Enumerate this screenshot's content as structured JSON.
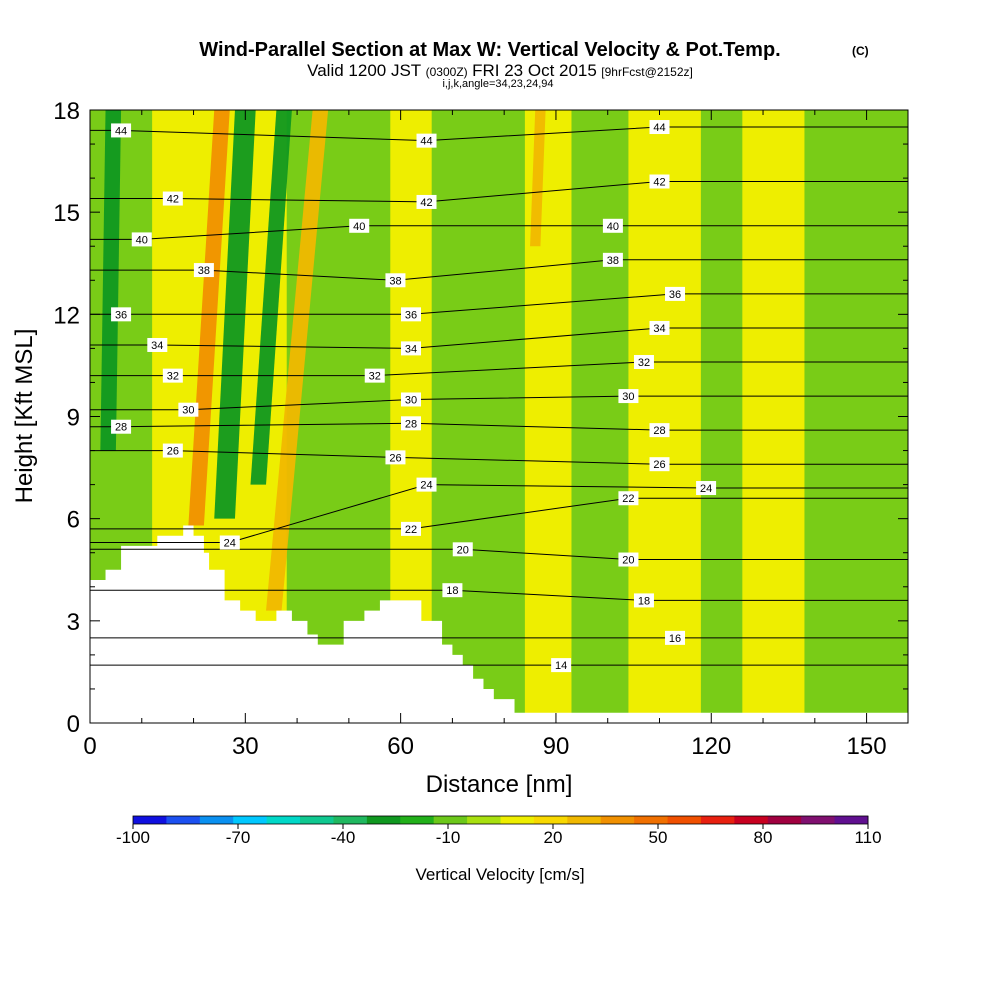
{
  "chart_data": {
    "type": "heatmap",
    "title": "Wind-Parallel Section at Max W: Vertical Velocity & Pot.Temp.",
    "title_mark": "(C)",
    "subtitle_main": "Valid 1200 JST",
    "subtitle_utc": "(0300Z)",
    "subtitle_date": "FRI 23 Oct 2015",
    "subtitle_fcst": "[9hrFcst@2152z]",
    "subtitle_indices": "i,j,k,angle=34,23,24,94",
    "xlabel": "Distance [nm]",
    "ylabel": "Height [Kft MSL]",
    "xlim": [
      0,
      158
    ],
    "ylim": [
      0,
      18
    ],
    "x_ticks": [
      0,
      30,
      60,
      90,
      120,
      150
    ],
    "x_tick_labels": [
      "0",
      "30",
      "60",
      "90",
      "120",
      "150"
    ],
    "y_ticks": [
      0,
      3,
      6,
      9,
      12,
      15,
      18
    ],
    "y_tick_labels": [
      "0",
      "3",
      "6",
      "9",
      "12",
      "15",
      "18"
    ],
    "colorbar": {
      "title": "Vertical Velocity [cm/s]",
      "labels": [
        "-100",
        "-70",
        "-40",
        "-10",
        "20",
        "50",
        "80",
        "110"
      ],
      "colors": [
        "#1010e0",
        "#1c50f0",
        "#0a90f0",
        "#00c8ff",
        "#00d8c8",
        "#10c890",
        "#20b860",
        "#109820",
        "#22b01a",
        "#6cc81a",
        "#a8e010",
        "#eeee00",
        "#f8d800",
        "#f0b800",
        "#f09000",
        "#f07000",
        "#f05000",
        "#e82010",
        "#c80020",
        "#a00040",
        "#801070",
        "#601090"
      ]
    },
    "terrain": [
      [
        0,
        4.2
      ],
      [
        3,
        4.2
      ],
      [
        3,
        4.5
      ],
      [
        6,
        4.5
      ],
      [
        6,
        5.2
      ],
      [
        13,
        5.2
      ],
      [
        13,
        5.5
      ],
      [
        18,
        5.5
      ],
      [
        18,
        5.8
      ],
      [
        20,
        5.8
      ],
      [
        20,
        5.5
      ],
      [
        22,
        5.5
      ],
      [
        22,
        5.0
      ],
      [
        23,
        5.0
      ],
      [
        23,
        4.5
      ],
      [
        26,
        4.5
      ],
      [
        26,
        3.6
      ],
      [
        29,
        3.6
      ],
      [
        29,
        3.3
      ],
      [
        32,
        3.3
      ],
      [
        32,
        3.0
      ],
      [
        36,
        3.0
      ],
      [
        36,
        3.3
      ],
      [
        39,
        3.3
      ],
      [
        39,
        3.0
      ],
      [
        42,
        3.0
      ],
      [
        42,
        2.6
      ],
      [
        44,
        2.6
      ],
      [
        44,
        2.3
      ],
      [
        49,
        2.3
      ],
      [
        49,
        3.0
      ],
      [
        53,
        3.0
      ],
      [
        53,
        3.3
      ],
      [
        56,
        3.3
      ],
      [
        56,
        3.6
      ],
      [
        64,
        3.6
      ],
      [
        64,
        3.0
      ],
      [
        68,
        3.0
      ],
      [
        68,
        2.3
      ],
      [
        70,
        2.3
      ],
      [
        70,
        2.0
      ],
      [
        72,
        2.0
      ],
      [
        72,
        1.7
      ],
      [
        74,
        1.7
      ],
      [
        74,
        1.3
      ],
      [
        76,
        1.3
      ],
      [
        76,
        1.0
      ],
      [
        78,
        1.0
      ],
      [
        78,
        0.7
      ],
      [
        82,
        0.7
      ],
      [
        82,
        0.3
      ],
      [
        158,
        0.3
      ]
    ],
    "updrafts": [
      {
        "name": "updraft-a",
        "x": [
          19,
          22
        ],
        "ybot": 5.8,
        "x_top": [
          24,
          27
        ],
        "ytop": 18,
        "value": 40
      },
      {
        "name": "updraft-b",
        "x": [
          34,
          37
        ],
        "ybot": 3.3,
        "x_top": [
          43,
          46
        ],
        "ytop": 18,
        "value": 30
      },
      {
        "name": "updraft-c",
        "x": [
          85,
          87
        ],
        "ybot": 14.0,
        "x_top": [
          86,
          88
        ],
        "ytop": 18,
        "value": 25
      }
    ],
    "downdrafts": [
      {
        "name": "downdraft-a",
        "x": [
          2,
          5
        ],
        "ybot": 8,
        "x_top": [
          3,
          6
        ],
        "ytop": 18,
        "value": -25
      },
      {
        "name": "downdraft-b",
        "x": [
          24,
          28
        ],
        "ybot": 6.0,
        "x_top": [
          28,
          32
        ],
        "ytop": 18,
        "value": -25
      },
      {
        "name": "downdraft-c",
        "x": [
          31,
          34
        ],
        "ybot": 7.0,
        "x_top": [
          36,
          39
        ],
        "ytop": 18,
        "value": -25
      }
    ],
    "theta_labels": [
      {
        "t": "44",
        "x": 6,
        "y": 17.4
      },
      {
        "t": "42",
        "x": 16,
        "y": 15.4
      },
      {
        "t": "40",
        "x": 10,
        "y": 14.2
      },
      {
        "t": "38",
        "x": 22,
        "y": 13.3
      },
      {
        "t": "36",
        "x": 6,
        "y": 12.0
      },
      {
        "t": "34",
        "x": 13,
        "y": 11.1
      },
      {
        "t": "32",
        "x": 16,
        "y": 10.2
      },
      {
        "t": "30",
        "x": 19,
        "y": 9.2
      },
      {
        "t": "28",
        "x": 6,
        "y": 8.7
      },
      {
        "t": "26",
        "x": 16,
        "y": 8.0
      },
      {
        "t": "24",
        "x": 27,
        "y": 5.3
      },
      {
        "t": "44",
        "x": 65,
        "y": 17.1
      },
      {
        "t": "42",
        "x": 65,
        "y": 15.3
      },
      {
        "t": "40",
        "x": 52,
        "y": 14.6
      },
      {
        "t": "38",
        "x": 59,
        "y": 13.0
      },
      {
        "t": "36",
        "x": 62,
        "y": 12.0
      },
      {
        "t": "34",
        "x": 62,
        "y": 11.0
      },
      {
        "t": "32",
        "x": 55,
        "y": 10.2
      },
      {
        "t": "30",
        "x": 62,
        "y": 9.5
      },
      {
        "t": "28",
        "x": 62,
        "y": 8.8
      },
      {
        "t": "26",
        "x": 59,
        "y": 7.8
      },
      {
        "t": "24",
        "x": 65,
        "y": 7.0
      },
      {
        "t": "22",
        "x": 62,
        "y": 5.7
      },
      {
        "t": "20",
        "x": 72,
        "y": 5.1
      },
      {
        "t": "18",
        "x": 70,
        "y": 3.9
      },
      {
        "t": "14",
        "x": 91,
        "y": 1.7
      },
      {
        "t": "44",
        "x": 110,
        "y": 17.5
      },
      {
        "t": "42",
        "x": 110,
        "y": 15.9
      },
      {
        "t": "40",
        "x": 101,
        "y": 14.6
      },
      {
        "t": "38",
        "x": 101,
        "y": 13.6
      },
      {
        "t": "36",
        "x": 113,
        "y": 12.6
      },
      {
        "t": "34",
        "x": 110,
        "y": 11.6
      },
      {
        "t": "32",
        "x": 107,
        "y": 10.6
      },
      {
        "t": "30",
        "x": 104,
        "y": 9.6
      },
      {
        "t": "28",
        "x": 110,
        "y": 8.6
      },
      {
        "t": "26",
        "x": 110,
        "y": 7.6
      },
      {
        "t": "24",
        "x": 119,
        "y": 6.9
      },
      {
        "t": "22",
        "x": 104,
        "y": 6.6
      },
      {
        "t": "20",
        "x": 104,
        "y": 4.8
      },
      {
        "t": "18",
        "x": 107,
        "y": 3.6
      },
      {
        "t": "16",
        "x": 113,
        "y": 2.5
      }
    ]
  }
}
